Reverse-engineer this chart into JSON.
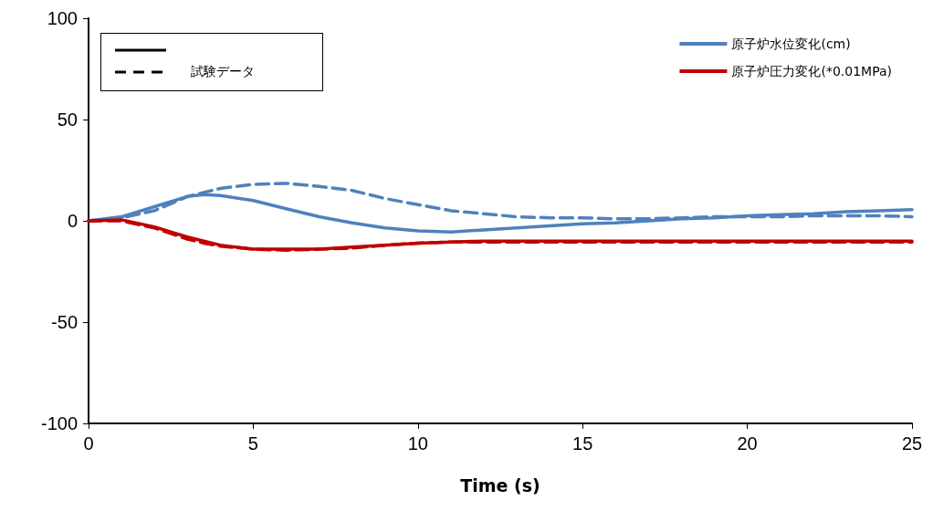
{
  "chart_data": {
    "type": "line",
    "xlabel": "Time (s)",
    "annotations": [
      "試験データ"
    ],
    "x": [
      0,
      1,
      2,
      3,
      3.5,
      4,
      5,
      6,
      7,
      8,
      9,
      10,
      11,
      12,
      13,
      14,
      15,
      16,
      17,
      18,
      19,
      20,
      21,
      22,
      23,
      24,
      25
    ],
    "series": [
      {
        "name": "原子炉水位変化(cm)",
        "color": "#4f81bd",
        "line_style": "solid",
        "values": [
          0,
          2,
          7,
          12,
          13,
          12.5,
          10,
          6,
          2,
          -1,
          -3.5,
          -5,
          -5.5,
          -4.5,
          -3.5,
          -2.5,
          -1.5,
          -1,
          0,
          1,
          1.5,
          2.5,
          3,
          3.5,
          4.5,
          5,
          5.5
        ]
      },
      {
        "color": "#4f81bd",
        "line_style": "dashed",
        "values": [
          0,
          1.5,
          5,
          12,
          14,
          16,
          18,
          18.5,
          17,
          15,
          11,
          8,
          5,
          3.5,
          2,
          1.5,
          1.5,
          1,
          1,
          1.5,
          2,
          2,
          2,
          2.5,
          2.5,
          2.5,
          2
        ]
      },
      {
        "name": "原子炉圧力変化(*0.01MPa)",
        "color": "#c00000",
        "line_style": "solid",
        "values": [
          0,
          0.5,
          -3,
          -8,
          -10,
          -12,
          -14,
          -14,
          -14,
          -13,
          -12,
          -11,
          -10.5,
          -10,
          -10,
          -10,
          -10,
          -10,
          -10,
          -10,
          -10,
          -10,
          -10,
          -10,
          -10,
          -10,
          -10
        ]
      },
      {
        "color": "#c00000",
        "line_style": "dashed",
        "values": [
          0,
          0,
          -3.5,
          -9,
          -11,
          -12.5,
          -14,
          -14.5,
          -14,
          -13.5,
          -12,
          -11,
          -10.5,
          -10.5,
          -10.5,
          -10.5,
          -10.5,
          -10.5,
          -10.5,
          -10.5,
          -10.5,
          -10.5,
          -10.5,
          -10.5,
          -10.5,
          -10.5,
          -10.5
        ]
      }
    ],
    "xlim": [
      0,
      25
    ],
    "xticks": [
      0,
      5,
      10,
      15,
      20,
      25
    ],
    "ylim": [
      -100,
      100
    ],
    "yticks": [
      -100,
      -50,
      0,
      50,
      100
    ],
    "grid": false,
    "legend": "top right",
    "marker": "none"
  }
}
